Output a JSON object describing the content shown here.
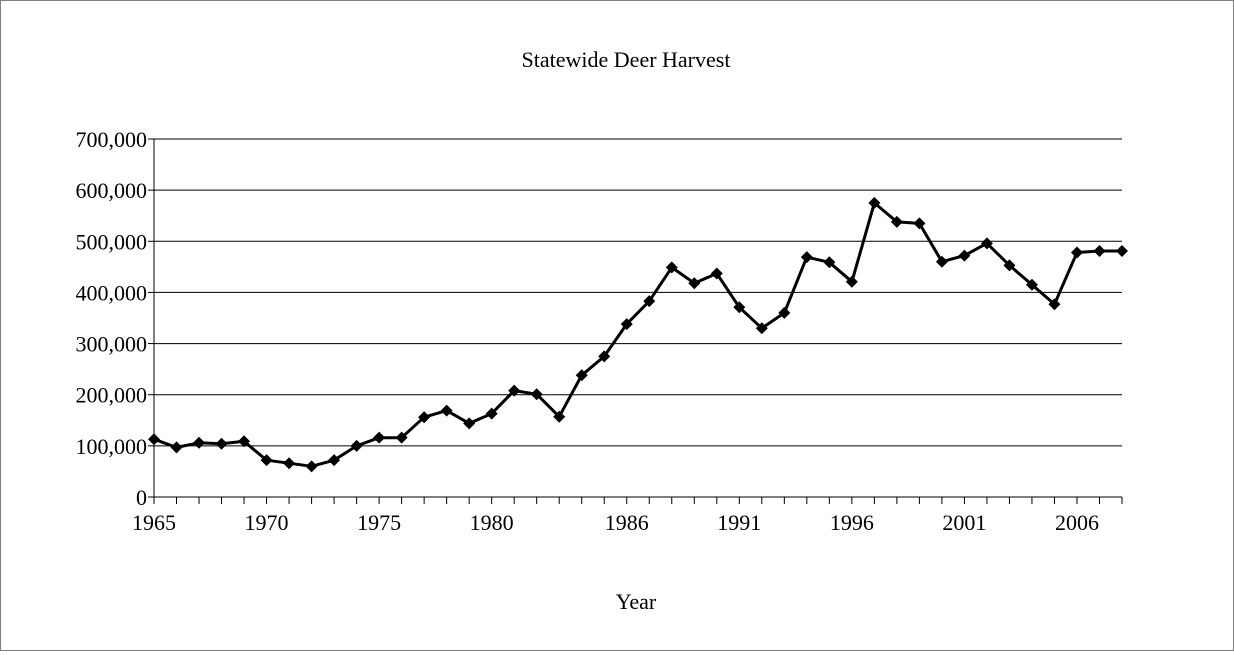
{
  "chart_data": {
    "type": "line",
    "title": "Statewide Deer Harvest",
    "xlabel": "Year",
    "ylabel": "",
    "ylim": [
      0,
      700000
    ],
    "yticks": [
      0,
      100000,
      200000,
      300000,
      400000,
      500000,
      600000,
      700000
    ],
    "ytick_labels": [
      "0",
      "100,000",
      "200,000",
      "300,000",
      "400,000",
      "500,000",
      "600,000",
      "700,000"
    ],
    "xlim": [
      1965,
      2008
    ],
    "xtick_labels": [
      "1965",
      "1970",
      "1975",
      "1980",
      "1986",
      "1991",
      "1996",
      "2001",
      "2006"
    ],
    "grid": "horizontal",
    "legend": "none",
    "line_color": "#000000",
    "marker": "diamond",
    "series": [
      {
        "x": [
          1965,
          1966,
          1967,
          1968,
          1969,
          1970,
          1971,
          1972,
          1973,
          1974,
          1975,
          1976,
          1977,
          1978,
          1979,
          1980,
          1981,
          1982,
          1983,
          1984,
          1985,
          1986,
          1987,
          1988,
          1989,
          1990,
          1991,
          1992,
          1993,
          1994,
          1995,
          1996,
          1997,
          1998,
          1999,
          2000,
          2001,
          2002,
          2003,
          2004,
          2005,
          2006,
          2007,
          2008
        ],
        "values": [
          113000,
          97000,
          106000,
          104000,
          109000,
          72000,
          66000,
          60000,
          72000,
          100000,
          116000,
          116000,
          156000,
          169000,
          144000,
          163000,
          208000,
          201000,
          157000,
          238000,
          275000,
          338000,
          383000,
          449000,
          418000,
          437000,
          371000,
          330000,
          360000,
          469000,
          459000,
          421000,
          575000,
          538000,
          535000,
          460000,
          472000,
          496000,
          453000,
          415000,
          377000,
          478000,
          481000,
          481000
        ]
      }
    ]
  }
}
